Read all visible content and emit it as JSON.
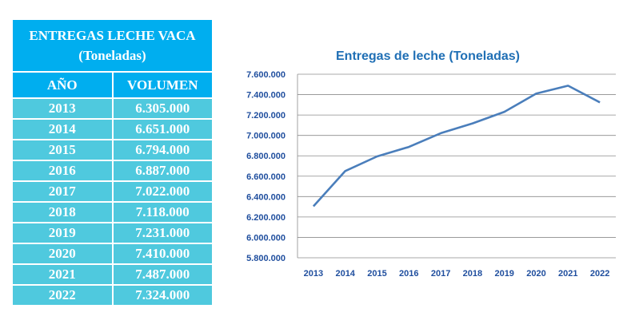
{
  "table": {
    "title_line1": "ENTREGAS LECHE VACA",
    "title_line2": "(Toneladas)",
    "col_year": "AÑO",
    "col_volume": "VOLUMEN",
    "rows": [
      {
        "year": "2013",
        "volume": "6.305.000"
      },
      {
        "year": "2014",
        "volume": "6.651.000"
      },
      {
        "year": "2015",
        "volume": "6.794.000"
      },
      {
        "year": "2016",
        "volume": "6.887.000"
      },
      {
        "year": "2017",
        "volume": "7.022.000"
      },
      {
        "year": "2018",
        "volume": "7.118.000"
      },
      {
        "year": "2019",
        "volume": "7.231.000"
      },
      {
        "year": "2020",
        "volume": "7.410.000"
      },
      {
        "year": "2021",
        "volume": "7.487.000"
      },
      {
        "year": "2022",
        "volume": "7.324.000"
      }
    ]
  },
  "colors": {
    "header_bg": "#00AEEF",
    "row_bg": "#4FC9DE",
    "line": "#4A7EBB",
    "title": "#1F6FB5",
    "tick_text": "#1F4E9E"
  },
  "chart_data": {
    "type": "line",
    "title": "Entregas de leche (Toneladas)",
    "categories": [
      "2013",
      "2014",
      "2015",
      "2016",
      "2017",
      "2018",
      "2019",
      "2020",
      "2021",
      "2022"
    ],
    "values": [
      6305000,
      6651000,
      6794000,
      6887000,
      7022000,
      7118000,
      7231000,
      7410000,
      7487000,
      7324000
    ],
    "ylim": [
      5800000,
      7600000
    ],
    "yticks": [
      "5.800.000",
      "6.000.000",
      "6.200.000",
      "6.400.000",
      "6.600.000",
      "6.800.000",
      "7.000.000",
      "7.200.000",
      "7.400.000",
      "7.600.000"
    ],
    "grid": true,
    "legend": "none",
    "xlabel": "",
    "ylabel": ""
  }
}
